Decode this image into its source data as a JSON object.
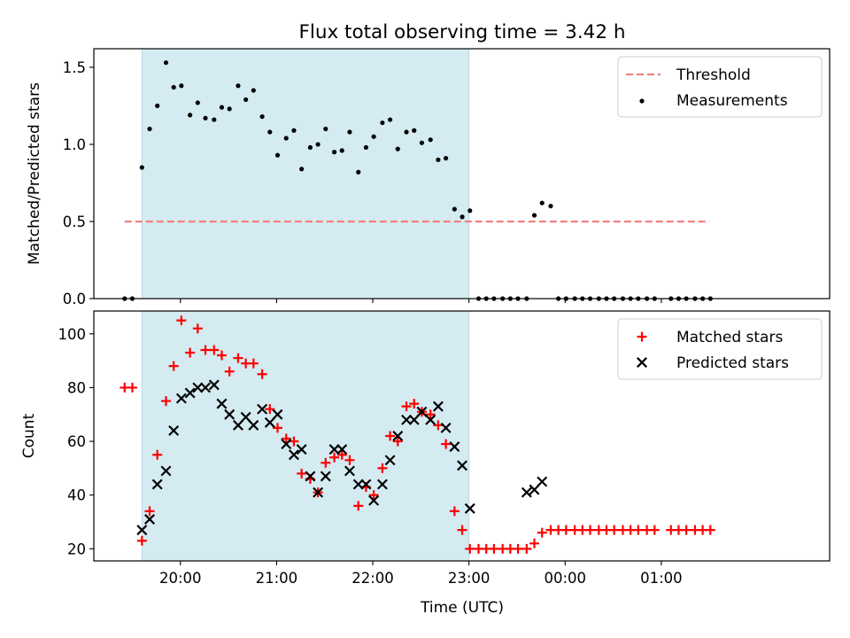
{
  "figure": {
    "title": "Flux total observing time = 3.42 h",
    "xlabel": "Time (UTC)"
  },
  "chart_data": [
    {
      "type": "scatter",
      "ylabel": "Matched/Predicted stars",
      "x_unit": "hours since midnight (UTC) of the observing night start day",
      "xlim": [
        19.1,
        26.75
      ],
      "ylim": [
        0.0,
        1.62
      ],
      "yticks": [
        0.0,
        0.5,
        1.0,
        1.5
      ],
      "ytick_labels": [
        "0.0",
        "0.5",
        "1.0",
        "1.5"
      ],
      "xticks": [
        20,
        21,
        22,
        23,
        24,
        25
      ],
      "xtick_labels": [
        "20:00",
        "21:00",
        "22:00",
        "23:00",
        "00:00",
        "01:00"
      ],
      "shaded_span": [
        19.6,
        23.0
      ],
      "shaded_color": "#d4ebf1",
      "legend_position": "upper right",
      "threshold": {
        "name": "Threshold",
        "value": 0.5,
        "x_range": [
          19.42,
          25.5
        ],
        "color": "#f08080",
        "style": "dashed"
      },
      "series": [
        {
          "name": "Measurements",
          "color": "#000000",
          "marker": "dot",
          "x": [
            19.42,
            19.5,
            19.6,
            19.68,
            19.76,
            19.85,
            19.93,
            20.01,
            20.1,
            20.18,
            20.26,
            20.35,
            20.43,
            20.51,
            20.6,
            20.68,
            20.76,
            20.85,
            20.93,
            21.01,
            21.1,
            21.18,
            21.26,
            21.35,
            21.43,
            21.51,
            21.6,
            21.68,
            21.76,
            21.85,
            21.93,
            22.01,
            22.1,
            22.18,
            22.26,
            22.35,
            22.43,
            22.51,
            22.6,
            22.68,
            22.76,
            22.85,
            22.93,
            23.01,
            23.1,
            23.18,
            23.26,
            23.35,
            23.43,
            23.51,
            23.6,
            23.68,
            23.76,
            23.85,
            23.93,
            24.01,
            24.1,
            24.18,
            24.26,
            24.35,
            24.43,
            24.51,
            24.6,
            24.68,
            24.76,
            24.85,
            24.93,
            25.1,
            25.18,
            25.26,
            25.35,
            25.43,
            25.51
          ],
          "y": [
            0,
            0,
            0.85,
            1.1,
            1.25,
            1.53,
            1.37,
            1.38,
            1.19,
            1.27,
            1.17,
            1.16,
            1.24,
            1.23,
            1.38,
            1.29,
            1.35,
            1.18,
            1.08,
            0.93,
            1.04,
            1.09,
            0.84,
            0.98,
            1.0,
            1.1,
            0.95,
            0.96,
            1.08,
            0.82,
            0.98,
            1.05,
            1.14,
            1.16,
            0.97,
            1.08,
            1.09,
            1.01,
            1.03,
            0.9,
            0.91,
            0.58,
            0.53,
            0.57,
            0,
            0,
            0,
            0,
            0,
            0,
            0,
            0.54,
            0.62,
            0.6,
            0,
            0,
            0,
            0,
            0,
            0,
            0,
            0,
            0,
            0,
            0,
            0,
            0,
            0,
            0,
            0,
            0,
            0,
            0
          ]
        }
      ]
    },
    {
      "type": "scatter",
      "ylabel": "Count",
      "xlabel": "Time (UTC)",
      "x_unit": "hours since midnight (UTC) of the observing night start day",
      "xlim": [
        19.1,
        26.75
      ],
      "ylim": [
        15.5,
        108.5
      ],
      "yticks": [
        20,
        40,
        60,
        80,
        100
      ],
      "ytick_labels": [
        "20",
        "40",
        "60",
        "80",
        "100"
      ],
      "xticks": [
        20,
        21,
        22,
        23,
        24,
        25
      ],
      "xtick_labels": [
        "20:00",
        "21:00",
        "22:00",
        "23:00",
        "00:00",
        "01:00"
      ],
      "shaded_span": [
        19.6,
        23.0
      ],
      "shaded_color": "#d4ebf1",
      "legend_position": "upper right",
      "series": [
        {
          "name": "Matched stars",
          "color": "#ff0000",
          "marker": "plus",
          "x": [
            19.42,
            19.5,
            19.6,
            19.68,
            19.76,
            19.85,
            19.93,
            20.01,
            20.1,
            20.18,
            20.26,
            20.35,
            20.43,
            20.51,
            20.6,
            20.68,
            20.76,
            20.85,
            20.93,
            21.01,
            21.1,
            21.18,
            21.26,
            21.35,
            21.43,
            21.51,
            21.6,
            21.68,
            21.76,
            21.85,
            21.93,
            22.01,
            22.1,
            22.18,
            22.26,
            22.35,
            22.43,
            22.51,
            22.6,
            22.68,
            22.76,
            22.85,
            22.93,
            23.01,
            23.1,
            23.18,
            23.26,
            23.35,
            23.43,
            23.51,
            23.6,
            23.68,
            23.76,
            23.85,
            23.93,
            24.01,
            24.1,
            24.18,
            24.26,
            24.35,
            24.43,
            24.51,
            24.6,
            24.68,
            24.76,
            24.85,
            24.93,
            25.1,
            25.18,
            25.26,
            25.35,
            25.43,
            25.51
          ],
          "y": [
            80,
            80,
            23,
            34,
            55,
            75,
            88,
            105,
            93,
            102,
            94,
            94,
            92,
            86,
            91,
            89,
            89,
            85,
            72,
            65,
            61,
            60,
            48,
            46,
            41,
            52,
            54,
            55,
            53,
            36,
            43,
            40,
            50,
            62,
            60,
            73,
            74,
            71,
            70,
            66,
            59,
            34,
            27,
            20,
            20,
            20,
            20,
            20,
            20,
            20,
            20,
            22,
            26,
            27,
            27,
            27,
            27,
            27,
            27,
            27,
            27,
            27,
            27,
            27,
            27,
            27,
            27,
            27,
            27,
            27,
            27,
            27,
            27
          ]
        },
        {
          "name": "Predicted stars",
          "color": "#000000",
          "marker": "x",
          "x": [
            19.6,
            19.68,
            19.76,
            19.85,
            19.93,
            20.01,
            20.1,
            20.18,
            20.26,
            20.35,
            20.43,
            20.51,
            20.6,
            20.68,
            20.76,
            20.85,
            20.93,
            21.01,
            21.1,
            21.18,
            21.26,
            21.35,
            21.43,
            21.51,
            21.6,
            21.68,
            21.76,
            21.85,
            21.93,
            22.01,
            22.1,
            22.18,
            22.26,
            22.35,
            22.43,
            22.51,
            22.6,
            22.68,
            22.76,
            22.85,
            22.93,
            23.01,
            23.6,
            23.68,
            23.76
          ],
          "y": [
            27,
            31,
            44,
            49,
            64,
            76,
            78,
            80,
            80,
            81,
            74,
            70,
            66,
            69,
            66,
            72,
            67,
            70,
            59,
            55,
            57,
            47,
            41,
            47,
            57,
            57,
            49,
            44,
            44,
            38,
            44,
            53,
            62,
            68,
            68,
            71,
            68,
            73,
            65,
            58,
            51,
            35,
            41,
            42,
            45
          ]
        }
      ]
    }
  ]
}
